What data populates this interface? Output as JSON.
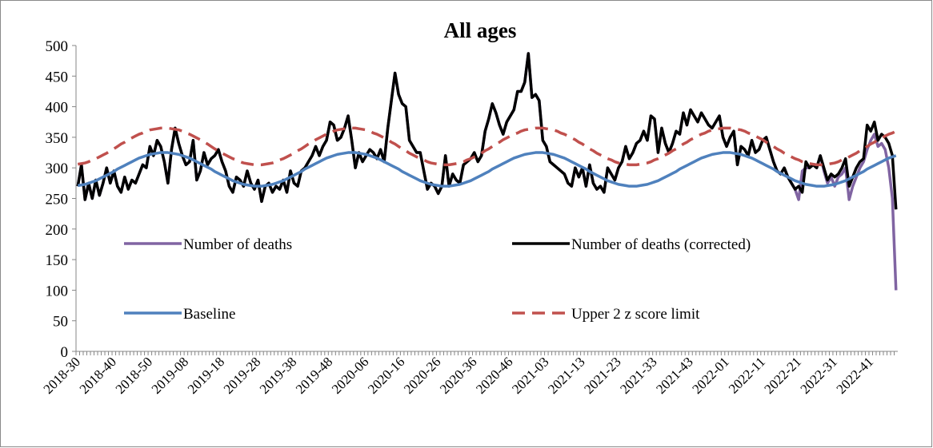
{
  "chart_data": {
    "type": "line",
    "title": "All ages",
    "categories": [
      "2018-30",
      null,
      null,
      null,
      null,
      null,
      null,
      null,
      null,
      null,
      "2018-40",
      null,
      null,
      null,
      null,
      null,
      null,
      null,
      null,
      null,
      "2018-50",
      null,
      null,
      null,
      null,
      null,
      null,
      null,
      null,
      null,
      "2019-08",
      null,
      null,
      null,
      null,
      null,
      null,
      null,
      null,
      null,
      "2019-18",
      null,
      null,
      null,
      null,
      null,
      null,
      null,
      null,
      null,
      "2019-28",
      null,
      null,
      null,
      null,
      null,
      null,
      null,
      null,
      null,
      "2019-38",
      null,
      null,
      null,
      null,
      null,
      null,
      null,
      null,
      null,
      "2019-48",
      null,
      null,
      null,
      null,
      null,
      null,
      null,
      null,
      null,
      "2020-06",
      null,
      null,
      null,
      null,
      null,
      null,
      null,
      null,
      null,
      "2020-16",
      null,
      null,
      null,
      null,
      null,
      null,
      null,
      null,
      null,
      "2020-26",
      null,
      null,
      null,
      null,
      null,
      null,
      null,
      null,
      null,
      "2020-36",
      null,
      null,
      null,
      null,
      null,
      null,
      null,
      null,
      null,
      "2020-46",
      null,
      null,
      null,
      null,
      null,
      null,
      null,
      null,
      null,
      "2021-03",
      null,
      null,
      null,
      null,
      null,
      null,
      null,
      null,
      null,
      "2021-13",
      null,
      null,
      null,
      null,
      null,
      null,
      null,
      null,
      null,
      "2021-23",
      null,
      null,
      null,
      null,
      null,
      null,
      null,
      null,
      null,
      "2021-33",
      null,
      null,
      null,
      null,
      null,
      null,
      null,
      null,
      null,
      "2021-43",
      null,
      null,
      null,
      null,
      null,
      null,
      null,
      null,
      null,
      "2022-01",
      null,
      null,
      null,
      null,
      null,
      null,
      null,
      null,
      null,
      "2022-11",
      null,
      null,
      null,
      null,
      null,
      null,
      null,
      null,
      null,
      "2022-21",
      null,
      null,
      null,
      null,
      null,
      null,
      null,
      null,
      null,
      "2022-31",
      null,
      null,
      null,
      null,
      null,
      null,
      null,
      null,
      null,
      "2022-41",
      null,
      null,
      null,
      null,
      null,
      null,
      null
    ],
    "series": [
      {
        "name": "Number of deaths",
        "color": "#8064a2",
        "values": [
          270,
          305,
          248,
          275,
          250,
          280,
          255,
          275,
          300,
          275,
          295,
          270,
          260,
          285,
          265,
          280,
          275,
          290,
          305,
          300,
          335,
          320,
          345,
          335,
          310,
          275,
          330,
          365,
          340,
          320,
          305,
          310,
          345,
          280,
          295,
          325,
          305,
          315,
          320,
          330,
          310,
          295,
          270,
          260,
          285,
          280,
          270,
          295,
          275,
          265,
          280,
          245,
          270,
          275,
          260,
          270,
          265,
          280,
          260,
          295,
          275,
          270,
          295,
          300,
          310,
          320,
          335,
          320,
          335,
          345,
          375,
          370,
          345,
          350,
          365,
          385,
          345,
          300,
          325,
          310,
          320,
          330,
          325,
          315,
          330,
          310,
          365,
          410,
          455,
          420,
          405,
          400,
          345,
          335,
          325,
          325,
          295,
          265,
          275,
          270,
          258,
          270,
          320,
          270,
          290,
          280,
          275,
          305,
          310,
          315,
          325,
          310,
          320,
          360,
          380,
          405,
          390,
          370,
          355,
          375,
          385,
          395,
          425,
          425,
          440,
          487,
          415,
          420,
          410,
          345,
          335,
          310,
          305,
          300,
          295,
          290,
          275,
          270,
          300,
          285,
          300,
          270,
          305,
          275,
          265,
          270,
          260,
          300,
          290,
          280,
          300,
          310,
          335,
          315,
          325,
          340,
          345,
          360,
          345,
          385,
          380,
          325,
          365,
          340,
          325,
          340,
          360,
          355,
          390,
          370,
          395,
          385,
          375,
          390,
          380,
          370,
          365,
          375,
          385,
          350,
          335,
          350,
          360,
          305,
          335,
          330,
          320,
          345,
          325,
          330,
          345,
          350,
          330,
          310,
          295,
          290,
          300,
          285,
          275,
          265,
          248,
          295,
          300,
          300,
          305,
          300,
          320,
          295,
          275,
          285,
          270,
          285,
          290,
          300,
          248,
          270,
          285,
          300,
          310,
          330,
          345,
          355,
          335,
          340,
          330,
          300,
          250,
          100
        ]
      },
      {
        "name": "Number of deaths (corrected)",
        "color": "#000000",
        "values": [
          270,
          305,
          248,
          275,
          250,
          280,
          255,
          275,
          300,
          275,
          295,
          270,
          260,
          285,
          265,
          280,
          275,
          290,
          305,
          300,
          335,
          320,
          345,
          335,
          310,
          275,
          330,
          365,
          340,
          320,
          305,
          310,
          345,
          280,
          295,
          325,
          305,
          315,
          320,
          330,
          310,
          295,
          270,
          260,
          285,
          280,
          270,
          295,
          275,
          265,
          280,
          245,
          270,
          275,
          260,
          270,
          265,
          280,
          260,
          295,
          275,
          270,
          295,
          300,
          310,
          320,
          335,
          320,
          335,
          345,
          375,
          370,
          345,
          350,
          365,
          385,
          345,
          300,
          325,
          310,
          320,
          330,
          325,
          315,
          330,
          310,
          365,
          410,
          455,
          420,
          405,
          400,
          345,
          335,
          325,
          325,
          295,
          265,
          275,
          270,
          258,
          270,
          320,
          270,
          290,
          280,
          275,
          305,
          310,
          315,
          325,
          310,
          320,
          360,
          380,
          405,
          390,
          370,
          355,
          375,
          385,
          395,
          425,
          425,
          440,
          487,
          415,
          420,
          410,
          345,
          335,
          310,
          305,
          300,
          295,
          290,
          275,
          270,
          300,
          285,
          300,
          270,
          305,
          275,
          265,
          270,
          260,
          300,
          290,
          280,
          300,
          310,
          335,
          315,
          325,
          340,
          345,
          360,
          345,
          385,
          380,
          325,
          365,
          340,
          325,
          340,
          360,
          355,
          390,
          370,
          395,
          385,
          375,
          390,
          380,
          370,
          365,
          375,
          385,
          350,
          335,
          350,
          360,
          305,
          335,
          330,
          320,
          345,
          325,
          330,
          345,
          350,
          330,
          310,
          295,
          290,
          300,
          285,
          275,
          265,
          270,
          260,
          310,
          300,
          305,
          300,
          320,
          300,
          280,
          290,
          285,
          290,
          300,
          315,
          270,
          285,
          300,
          310,
          315,
          370,
          360,
          375,
          345,
          355,
          350,
          340,
          320,
          232
        ]
      },
      {
        "name": "Baseline",
        "color": "#4f81bd",
        "values": [
          271,
          272,
          273,
          275,
          277,
          279,
          282,
          285,
          288,
          291,
          294,
          298,
          301,
          304,
          307,
          310,
          313,
          316,
          318,
          320,
          322,
          323,
          324,
          325,
          325,
          325,
          324,
          323,
          322,
          320,
          318,
          316,
          313,
          310,
          307,
          304,
          301,
          298,
          294,
          291,
          288,
          285,
          282,
          279,
          277,
          275,
          273,
          272,
          271,
          270,
          270,
          270,
          271,
          272,
          273,
          275,
          277,
          279,
          282,
          285,
          288,
          291,
          294,
          298,
          301,
          304,
          307,
          310,
          313,
          316,
          318,
          320,
          322,
          323,
          324,
          325,
          325,
          325,
          324,
          323,
          322,
          320,
          318,
          316,
          313,
          310,
          307,
          304,
          301,
          298,
          294,
          291,
          288,
          285,
          282,
          279,
          277,
          275,
          273,
          272,
          271,
          270,
          270,
          270,
          271,
          272,
          273,
          275,
          277,
          279,
          282,
          285,
          288,
          291,
          294,
          298,
          301,
          304,
          307,
          310,
          313,
          316,
          318,
          320,
          322,
          323,
          324,
          325,
          325,
          325,
          324,
          323,
          322,
          320,
          318,
          316,
          313,
          310,
          307,
          304,
          301,
          298,
          294,
          291,
          288,
          285,
          282,
          279,
          277,
          275,
          273,
          272,
          271,
          270,
          270,
          270,
          271,
          272,
          273,
          275,
          277,
          279,
          282,
          285,
          288,
          291,
          294,
          298,
          301,
          304,
          307,
          310,
          313,
          316,
          318,
          320,
          322,
          323,
          324,
          325,
          325,
          325,
          324,
          323,
          322,
          320,
          318,
          316,
          313,
          310,
          307,
          304,
          301,
          298,
          294,
          291,
          288,
          285,
          282,
          279,
          277,
          275,
          273,
          272,
          271,
          270,
          270,
          270,
          271,
          272,
          273,
          275,
          277,
          279,
          282,
          285,
          288,
          291,
          294,
          298,
          301,
          304,
          307,
          310,
          313,
          316,
          318,
          320
        ]
      },
      {
        "name": "Upper 2 z score limit",
        "color": "#c0504d",
        "dashed": true,
        "values": [
          306,
          307,
          308,
          310,
          313,
          315,
          318,
          321,
          324,
          328,
          331,
          335,
          339,
          342,
          346,
          349,
          352,
          355,
          357,
          360,
          362,
          363,
          364,
          365,
          365,
          365,
          364,
          363,
          362,
          360,
          357,
          355,
          352,
          349,
          346,
          342,
          339,
          335,
          331,
          328,
          324,
          321,
          318,
          315,
          313,
          310,
          308,
          307,
          306,
          305,
          305,
          305,
          306,
          307,
          308,
          310,
          313,
          315,
          318,
          321,
          324,
          328,
          331,
          335,
          339,
          342,
          346,
          349,
          352,
          355,
          357,
          360,
          362,
          363,
          364,
          365,
          365,
          365,
          364,
          363,
          362,
          360,
          357,
          355,
          352,
          349,
          346,
          342,
          339,
          335,
          331,
          328,
          324,
          321,
          318,
          315,
          313,
          310,
          308,
          307,
          306,
          305,
          305,
          305,
          306,
          307,
          308,
          310,
          313,
          315,
          318,
          321,
          324,
          328,
          331,
          335,
          339,
          342,
          346,
          349,
          352,
          355,
          357,
          360,
          362,
          363,
          364,
          365,
          365,
          365,
          364,
          363,
          362,
          360,
          357,
          355,
          352,
          349,
          346,
          342,
          339,
          335,
          331,
          328,
          324,
          321,
          318,
          315,
          313,
          310,
          308,
          307,
          306,
          305,
          305,
          305,
          306,
          307,
          308,
          310,
          313,
          315,
          318,
          321,
          324,
          328,
          331,
          335,
          339,
          342,
          346,
          349,
          352,
          355,
          357,
          360,
          362,
          363,
          364,
          365,
          365,
          365,
          364,
          363,
          362,
          360,
          357,
          355,
          352,
          349,
          346,
          342,
          339,
          335,
          331,
          328,
          324,
          321,
          318,
          315,
          313,
          310,
          308,
          307,
          306,
          305,
          305,
          305,
          306,
          307,
          308,
          310,
          313,
          315,
          318,
          321,
          324,
          328,
          331,
          335,
          339,
          342,
          346,
          349,
          352,
          355,
          357,
          360
        ]
      }
    ],
    "ylim": [
      0,
      500
    ],
    "yticks": [
      0,
      50,
      100,
      150,
      200,
      250,
      300,
      350,
      400,
      450,
      500
    ]
  }
}
